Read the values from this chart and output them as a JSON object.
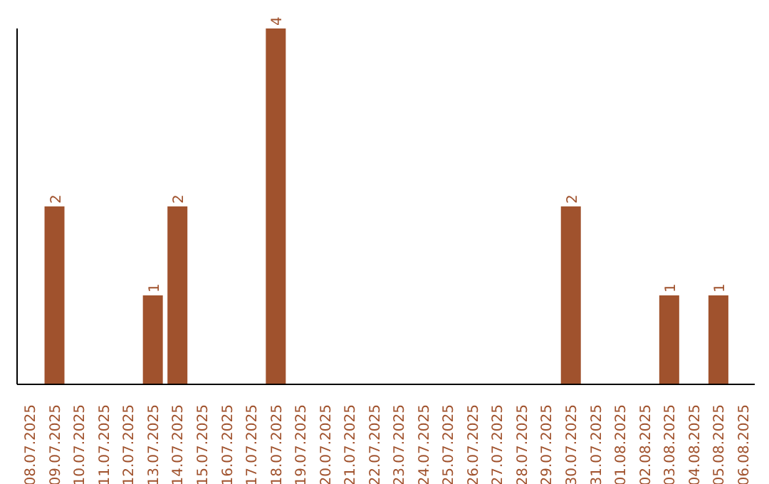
{
  "chart_data": {
    "type": "bar",
    "categories": [
      "08.07.2025",
      "09.07.2025",
      "10.07.2025",
      "11.07.2025",
      "12.07.2025",
      "13.07.2025",
      "14.07.2025",
      "15.07.2025",
      "16.07.2025",
      "17.07.2025",
      "18.07.2025",
      "19.07.2025",
      "20.07.2025",
      "21.07.2025",
      "22.07.2025",
      "23.07.2025",
      "24.07.2025",
      "25.07.2025",
      "26.07.2025",
      "27.07.2025",
      "28.07.2025",
      "29.07.2025",
      "30.07.2025",
      "31.07.2025",
      "01.08.2025",
      "02.08.2025",
      "03.08.2025",
      "04.08.2025",
      "05.08.2025",
      "06.08.2025"
    ],
    "values": [
      0,
      2,
      0,
      0,
      0,
      1,
      2,
      0,
      0,
      0,
      4,
      0,
      0,
      0,
      0,
      0,
      0,
      0,
      0,
      0,
      0,
      0,
      2,
      0,
      0,
      0,
      1,
      0,
      1,
      0
    ],
    "value_labels": [
      null,
      "2",
      null,
      null,
      null,
      "1",
      "2",
      null,
      null,
      null,
      "4",
      null,
      null,
      null,
      null,
      null,
      null,
      null,
      null,
      null,
      null,
      null,
      "2",
      null,
      null,
      null,
      "1",
      null,
      "1",
      null
    ],
    "color": "#a0522d",
    "tick_labels": "x"
  }
}
